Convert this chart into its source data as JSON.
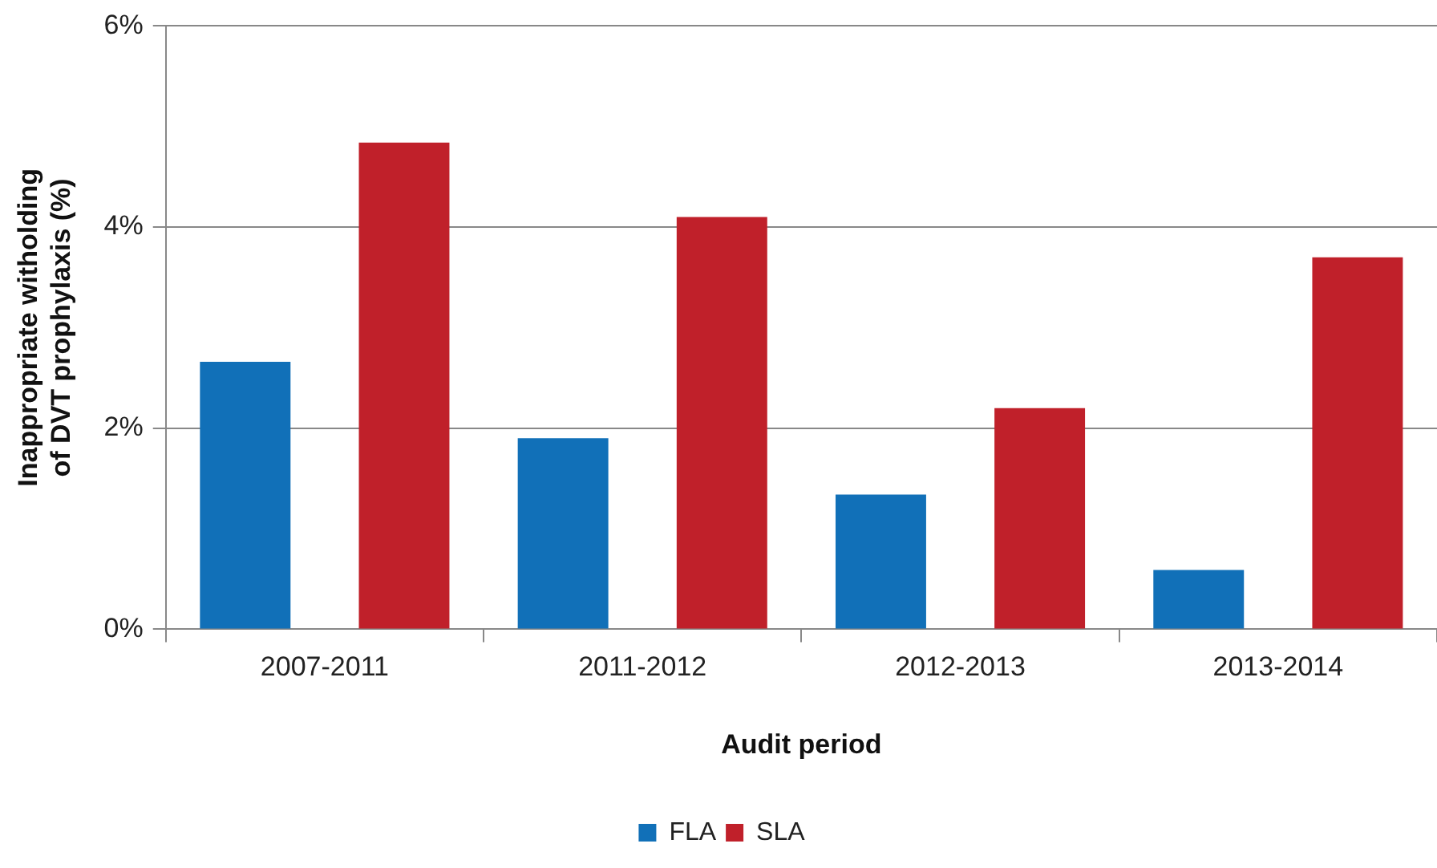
{
  "chart_data": {
    "type": "bar",
    "xlabel": "Audit period",
    "ylabel": "Inappropriate witholding of DVT prophylaxis (%)",
    "categories": [
      "2007-2011",
      "2011-2012",
      "2012-2013",
      "2013-2014"
    ],
    "series": [
      {
        "name": "FLA",
        "color": "#1170b8",
        "values": [
          2.66,
          1.9,
          1.34,
          0.59
        ]
      },
      {
        "name": "SLA",
        "color": "#c0202a",
        "values": [
          4.84,
          4.1,
          2.2,
          3.7
        ]
      }
    ],
    "ylim": [
      0,
      6
    ],
    "yticks": [
      {
        "value": 0,
        "label": "0%"
      },
      {
        "value": 2,
        "label": "2%"
      },
      {
        "value": 4,
        "label": "4%"
      },
      {
        "value": 6,
        "label": "6%"
      }
    ],
    "grid": "y",
    "legend": "bottom"
  }
}
